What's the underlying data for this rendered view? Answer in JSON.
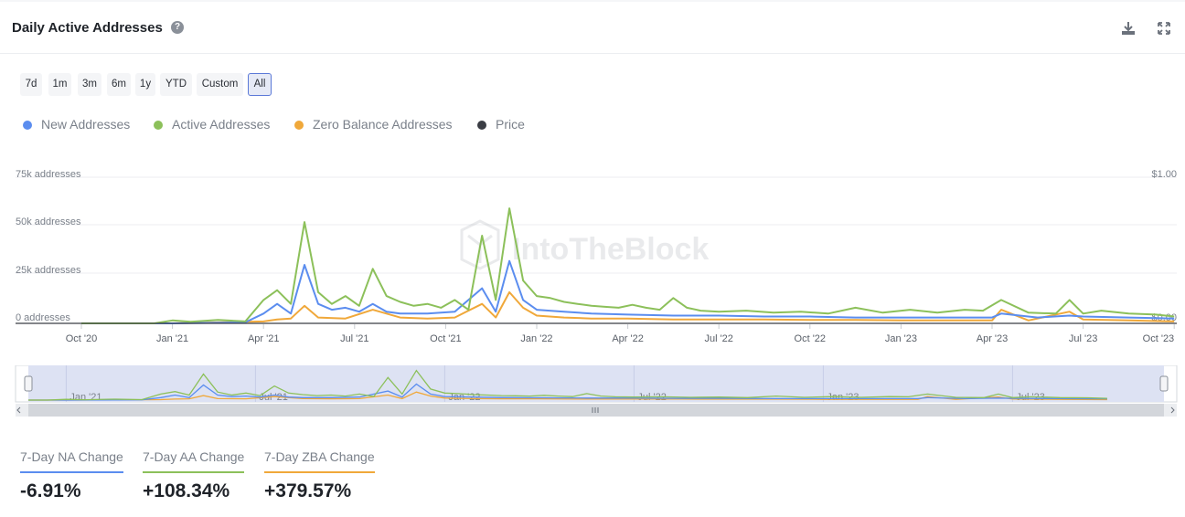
{
  "header": {
    "title": "Daily Active Addresses",
    "help_icon": "help-circle-icon",
    "download_icon": "download-icon",
    "fullscreen_icon": "fullscreen-icon"
  },
  "ranges": [
    {
      "label": "7d",
      "active": false
    },
    {
      "label": "1m",
      "active": false
    },
    {
      "label": "3m",
      "active": false
    },
    {
      "label": "6m",
      "active": false
    },
    {
      "label": "1y",
      "active": false
    },
    {
      "label": "YTD",
      "active": false
    },
    {
      "label": "Custom",
      "active": false
    },
    {
      "label": "All",
      "active": true
    }
  ],
  "legend": [
    {
      "label": "New Addresses",
      "color": "#5b8def"
    },
    {
      "label": "Active Addresses",
      "color": "#8cc05a"
    },
    {
      "label": "Zero Balance Addresses",
      "color": "#f0a83a"
    },
    {
      "label": "Price",
      "color": "#3a3d44"
    }
  ],
  "watermark": "IntoTheBlock",
  "chart_data": {
    "type": "line",
    "title": "Daily Active Addresses",
    "x_labels": [
      "Oct '20",
      "Jan '21",
      "Apr '21",
      "Jul '21",
      "Oct '21",
      "Jan '22",
      "Apr '22",
      "Jul '22",
      "Oct '22",
      "Jan '23",
      "Apr '23",
      "Jul '23",
      "Oct '23"
    ],
    "y_labels": [
      "75k addresses",
      "50k addresses",
      "25k addresses",
      "0 addresses"
    ],
    "y2_labels": [
      "$1.00",
      "$0.00"
    ],
    "ylim": [
      0,
      75000
    ],
    "y2lim": [
      0,
      1
    ],
    "navigator_labels": [
      "Jan '21",
      "Jul '21",
      "Jan '22",
      "Jul '22",
      "Jan '23",
      "Jul '23"
    ],
    "series": [
      {
        "name": "Active Addresses",
        "color": "#8cc05a",
        "x": [
          0,
          0.8,
          1.0,
          1.2,
          1.5,
          1.8,
          2.0,
          2.15,
          2.3,
          2.45,
          2.6,
          2.75,
          2.9,
          3.05,
          3.2,
          3.35,
          3.5,
          3.65,
          3.8,
          3.95,
          4.1,
          4.25,
          4.4,
          4.55,
          4.7,
          4.85,
          5.0,
          5.15,
          5.3,
          5.45,
          5.6,
          5.75,
          5.9,
          6.05,
          6.2,
          6.35,
          6.5,
          6.65,
          6.8,
          7.0,
          7.3,
          7.6,
          7.9,
          8.2,
          8.5,
          8.8,
          9.1,
          9.4,
          9.7,
          9.9,
          10.1,
          10.4,
          10.7,
          10.85,
          11.0,
          11.2,
          11.5,
          11.8,
          12.0
        ],
        "values": [
          0,
          0,
          1500,
          800,
          1800,
          1000,
          12000,
          17000,
          10000,
          52000,
          16000,
          10000,
          14000,
          9000,
          28000,
          14000,
          11000,
          9000,
          10000,
          8000,
          12000,
          7000,
          45000,
          12000,
          59000,
          22000,
          14000,
          13000,
          11000,
          10000,
          9000,
          8500,
          8000,
          9500,
          8000,
          7000,
          13000,
          8000,
          6500,
          6000,
          6500,
          5500,
          6000,
          5000,
          8000,
          5500,
          7000,
          5500,
          7000,
          6500,
          12000,
          5500,
          5000,
          12000,
          5000,
          6500,
          5000,
          4500,
          3500
        ]
      },
      {
        "name": "New Addresses",
        "color": "#5b8def",
        "x": [
          0,
          1.0,
          1.8,
          2.0,
          2.15,
          2.3,
          2.45,
          2.6,
          2.75,
          2.9,
          3.05,
          3.2,
          3.35,
          3.5,
          3.8,
          4.1,
          4.4,
          4.55,
          4.7,
          4.85,
          5.0,
          5.3,
          5.6,
          6.0,
          6.5,
          7.0,
          7.5,
          8.0,
          8.5,
          9.0,
          9.5,
          10.0,
          10.1,
          10.5,
          10.85,
          11.0,
          11.5,
          12.0
        ],
        "values": [
          0,
          0,
          500,
          5000,
          10000,
          5000,
          30000,
          10000,
          7000,
          8000,
          6000,
          10000,
          6000,
          5000,
          5000,
          6000,
          18000,
          6000,
          32000,
          12000,
          7000,
          6000,
          5000,
          4500,
          4000,
          4000,
          3500,
          3500,
          3000,
          3000,
          3000,
          3000,
          5000,
          3000,
          4000,
          3500,
          3000,
          2500
        ]
      },
      {
        "name": "Zero Balance Addresses",
        "color": "#f0a83a",
        "x": [
          0,
          1.0,
          2.0,
          2.15,
          2.3,
          2.45,
          2.6,
          2.9,
          3.2,
          3.5,
          3.8,
          4.1,
          4.4,
          4.55,
          4.7,
          4.85,
          5.0,
          5.3,
          5.6,
          6.0,
          6.5,
          7.0,
          7.5,
          8.0,
          8.5,
          9.0,
          9.5,
          10.0,
          10.1,
          10.4,
          10.85,
          11.0,
          11.5,
          12.0
        ],
        "values": [
          0,
          0,
          1000,
          2000,
          2500,
          9000,
          3000,
          2500,
          7000,
          3000,
          2500,
          3000,
          10000,
          3000,
          16000,
          8000,
          4000,
          3000,
          2500,
          2500,
          2000,
          2000,
          2000,
          1800,
          1800,
          1500,
          1500,
          1500,
          7000,
          1500,
          6000,
          2000,
          1500,
          1000
        ]
      }
    ]
  },
  "stats": [
    {
      "label": "7-Day NA Change",
      "value": "-6.91%",
      "color": "#5b8def"
    },
    {
      "label": "7-Day AA Change",
      "value": "+108.34%",
      "color": "#8cc05a"
    },
    {
      "label": "7-Day ZBA Change",
      "value": "+379.57%",
      "color": "#f0a83a"
    }
  ]
}
